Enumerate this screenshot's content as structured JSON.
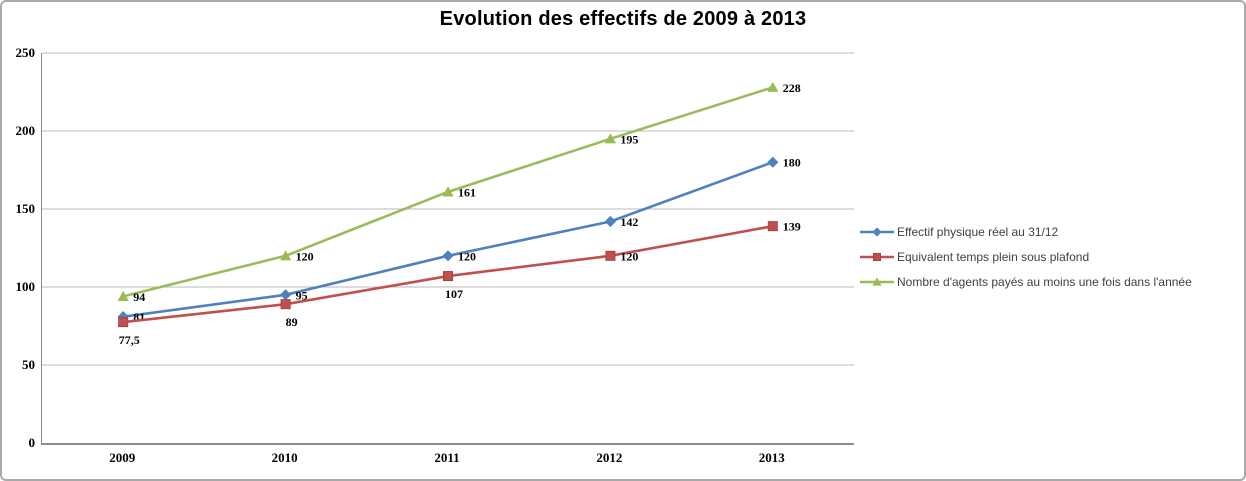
{
  "chart_data": {
    "type": "line",
    "title": "Evolution des effectifs de 2009 à 2013",
    "categories": [
      "2009",
      "2010",
      "2011",
      "2012",
      "2013"
    ],
    "series": [
      {
        "name": "Effectif physique réel au 31/12",
        "color": "#4F81BD",
        "marker": "diamond",
        "values": [
          81,
          95,
          120,
          142,
          180
        ],
        "labels": [
          "81",
          "95",
          "120",
          "142",
          "180"
        ],
        "label_positions": [
          "right",
          "right",
          "right",
          "right",
          "right"
        ]
      },
      {
        "name": "Equivalent temps plein sous plafond",
        "color": "#C0504D",
        "marker": "square",
        "values": [
          77.5,
          89,
          107,
          120,
          139
        ],
        "labels": [
          "77,5",
          "89",
          "107",
          "120",
          "139"
        ],
        "label_positions": [
          "below",
          "below",
          "below",
          "right",
          "right"
        ]
      },
      {
        "name": "Nombre d'agents payés au moins une fois dans l'année",
        "color": "#9BBB59",
        "marker": "triangle",
        "values": [
          94,
          120,
          161,
          195,
          228
        ],
        "labels": [
          "94",
          "120",
          "161",
          "195",
          "228"
        ],
        "label_positions": [
          "right",
          "right",
          "right",
          "right",
          "right"
        ]
      }
    ],
    "ylim": [
      0,
      250
    ],
    "ytick_step": 50,
    "yticks": [
      "0",
      "50",
      "100",
      "150",
      "200",
      "250"
    ],
    "xlabel": "",
    "ylabel": "",
    "grid": true,
    "legend_position": "right"
  },
  "colors": {
    "gridline": "#b8b8b8",
    "axis": "#8c8c8c",
    "frame_border": "#a9a9a9",
    "legend_text": "#3f3f3f",
    "title_text": "#000000"
  }
}
